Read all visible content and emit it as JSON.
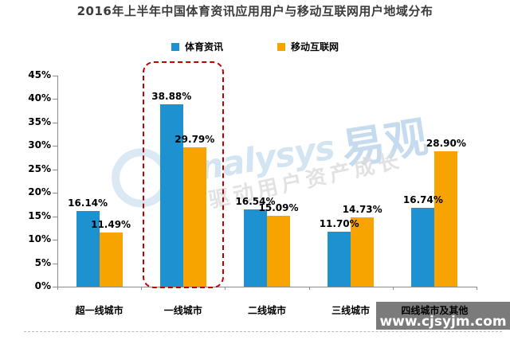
{
  "page": {
    "background": "#ffffff"
  },
  "chart_data": {
    "type": "bar",
    "title": "2016年上半年中国体育资讯应用用户与移动互联网用户地域分布",
    "categories": [
      "超一线城市",
      "一线城市",
      "二线城市",
      "三线城市",
      "四线城市及其他"
    ],
    "series": [
      {
        "name": "体育资讯",
        "color": "#1e92d0",
        "values": [
          16.14,
          38.88,
          16.54,
          11.7,
          16.74
        ],
        "value_labels": [
          "16.14%",
          "38.88%",
          "16.54%",
          "11.70%",
          "16.74%"
        ]
      },
      {
        "name": "移动互联网",
        "color": "#f7a400",
        "values": [
          11.49,
          29.79,
          15.09,
          14.73,
          28.9
        ],
        "value_labels": [
          "11.49%",
          "29.79%",
          "15.09%",
          "14.73%",
          "28.90%"
        ]
      }
    ],
    "ylim": [
      0,
      45
    ],
    "y_tick_labels": [
      "0%",
      "5%",
      "10%",
      "15%",
      "20%",
      "25%",
      "30%",
      "35%",
      "40%",
      "45%"
    ],
    "grid": false,
    "legend_position": "top-center",
    "highlight": {
      "category": "一线城市",
      "category_index": 1,
      "style": "red dashed rounded box",
      "color": "#c00000"
    }
  },
  "watermarks": {
    "center_logo_en": "analysys",
    "center_logo_cn": "易观",
    "center_tagline": "驱动用户资产成长",
    "bottom_right_url": "www.cjsyjm.com"
  }
}
